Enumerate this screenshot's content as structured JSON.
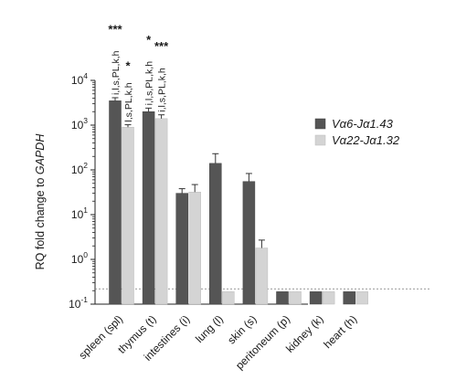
{
  "chart_data": {
    "type": "bar",
    "yscale": "log",
    "ylim": [
      0.1,
      10000
    ],
    "ylabel": "RQ fold change to ",
    "ylabel_italic": "GAPDH",
    "y_ticks": [
      {
        "value": 0.1,
        "base": "10",
        "exp": "-1"
      },
      {
        "value": 1,
        "base": "10",
        "exp": "0"
      },
      {
        "value": 10,
        "base": "10",
        "exp": "1"
      },
      {
        "value": 100,
        "base": "10",
        "exp": "2"
      },
      {
        "value": 1000,
        "base": "10",
        "exp": "3"
      },
      {
        "value": 10000,
        "base": "10",
        "exp": "4"
      }
    ],
    "categories": [
      "spleen (spl)",
      "thymus (t)",
      "intestines (i)",
      "lung (l)",
      "skin (s)",
      "peritoneum (p)",
      "kidney (k)",
      "heart (h)"
    ],
    "threshold": 0.22,
    "series": [
      {
        "name": "Vα6-Jα1.43",
        "color": "#555555",
        "values": [
          3500,
          2000,
          30,
          140,
          55,
          0.19,
          0.19,
          0.19
        ],
        "errors": [
          600,
          400,
          8,
          90,
          28,
          0,
          0,
          0
        ]
      },
      {
        "name": "Vα22-Jα1.32",
        "color": "#d4d4d4",
        "values": [
          900,
          1400,
          32,
          0.19,
          1.8,
          0.19,
          0.19,
          0.19
        ],
        "errors": [
          120,
          300,
          15,
          0,
          0.9,
          0,
          0,
          0
        ]
      }
    ],
    "annotations": [
      {
        "category": 0,
        "series": 0,
        "stars": "***",
        "text": "i,l,s,PL,k,h"
      },
      {
        "category": 0,
        "series": 1,
        "stars": "*",
        "text": "l,s,PL,k,h"
      },
      {
        "category": 1,
        "series": 0,
        "stars": "*",
        "text": "i,l,s,PL,k,h"
      },
      {
        "category": 1,
        "series": 1,
        "stars": "***",
        "text": "i,l,s,PL,k,h"
      }
    ],
    "legend_position": "right"
  }
}
